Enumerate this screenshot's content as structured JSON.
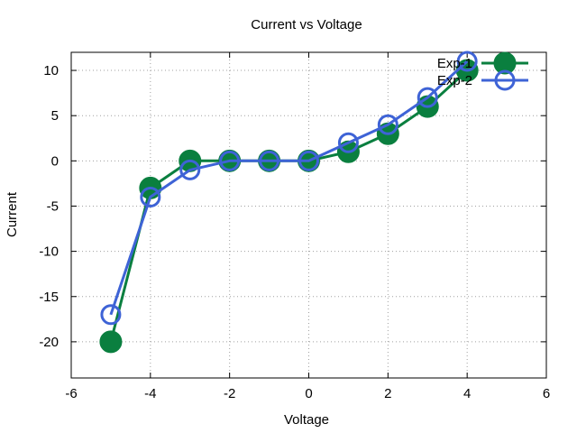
{
  "chart_data": {
    "type": "line",
    "title": "Current vs Voltage",
    "xlabel": "Voltage",
    "ylabel": "Current",
    "xlim": [
      -6,
      6
    ],
    "ylim": [
      -24,
      12
    ],
    "xticks": [
      -6,
      -4,
      -2,
      0,
      2,
      4,
      6
    ],
    "yticks": [
      -20,
      -15,
      -10,
      -5,
      0,
      5,
      10
    ],
    "grid": true,
    "legend_position": "top-right",
    "series": [
      {
        "name": "Exp-1",
        "color": "#0a7f3f",
        "marker": "filled-circle",
        "x": [
          -5,
          -4,
          -3,
          -2,
          -1,
          0,
          1,
          2,
          3,
          4
        ],
        "y": [
          -20,
          -3,
          0,
          0,
          0,
          0,
          1,
          3,
          6,
          10
        ]
      },
      {
        "name": "Exp-2",
        "color": "#3e63d6",
        "marker": "open-circle",
        "x": [
          -5,
          -4,
          -3,
          -2,
          -1,
          0,
          1,
          2,
          3,
          4
        ],
        "y": [
          -17,
          -4,
          -1,
          0,
          0,
          0,
          2,
          4,
          7,
          11
        ]
      }
    ]
  }
}
